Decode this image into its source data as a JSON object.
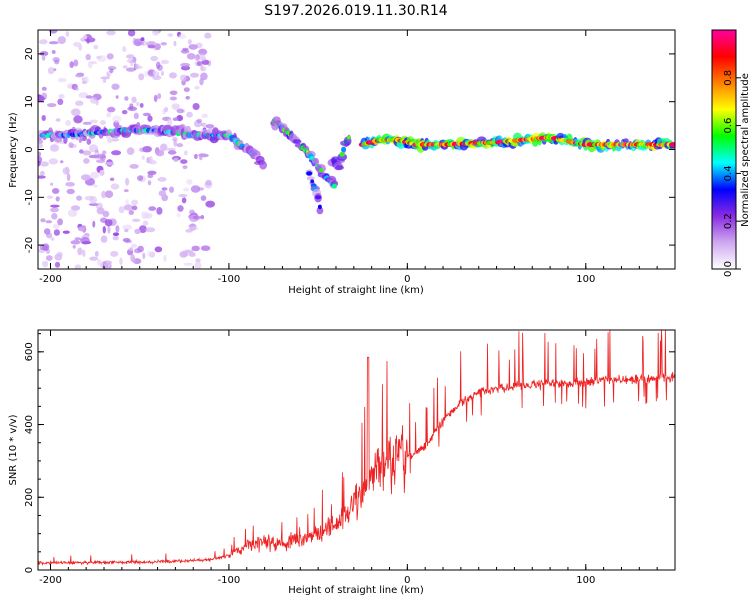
{
  "figure_title": "S197.2026.019.11.30.R14",
  "colorbar": {
    "label": "Normalized spectral amplitude",
    "range": [
      0,
      1
    ],
    "ticks": [
      0.0,
      0.2,
      0.4,
      0.6,
      0.8
    ],
    "tick_labels": [
      "0.0",
      "0.2",
      "0.4",
      "0.6",
      "0.8"
    ],
    "stops": [
      "#ffffff",
      "#cfa8f0",
      "#8a2be2",
      "#0000ff",
      "#00ffff",
      "#00ff00",
      "#ffff00",
      "#ff8000",
      "#ff0000",
      "#ff00a0"
    ]
  },
  "chart_data": [
    {
      "type": "heatmap",
      "name": "spectrogram",
      "title": "S197.2026.019.11.30.R14",
      "xlabel": "Height of straight line (km)",
      "ylabel": "Frequency (Hz)",
      "xlim": [
        -207,
        150
      ],
      "ylim": [
        -25,
        25
      ],
      "xticks": [
        -200,
        -100,
        0,
        100
      ],
      "xtick_labels": [
        "-200",
        "-100",
        "0",
        "100"
      ],
      "yticks": [
        -20,
        -10,
        0,
        10,
        20
      ],
      "ytick_labels": [
        "-20",
        "-10",
        "0",
        "10",
        "20"
      ],
      "features": [
        {
          "name": "noise-field",
          "x_range": [
            -207,
            -110
          ],
          "y_range": [
            -25,
            25
          ],
          "amplitude": 0.15
        },
        {
          "name": "main-trace",
          "points": [
            [
              -205,
              3
            ],
            [
              -190,
              3
            ],
            [
              -160,
              4
            ],
            [
              -140,
              4
            ],
            [
              -120,
              3
            ],
            [
              -100,
              3
            ],
            [
              -90,
              0
            ],
            [
              -80,
              -3
            ]
          ],
          "amplitude": 0.35
        },
        {
          "name": "trace-segment-a",
          "points": [
            [
              -75,
              6
            ],
            [
              -65,
              3
            ],
            [
              -55,
              -1
            ],
            [
              -45,
              -6
            ],
            [
              -40,
              -8
            ]
          ],
          "amplitude": 0.45
        },
        {
          "name": "trace-segment-b",
          "points": [
            [
              -55,
              -5
            ],
            [
              -50,
              -10
            ],
            [
              -48,
              -14
            ]
          ],
          "amplitude": 0.3
        },
        {
          "name": "trace-segment-c",
          "points": [
            [
              -42,
              -3
            ],
            [
              -38,
              -3
            ],
            [
              -35,
              1
            ],
            [
              -32,
              3
            ]
          ],
          "amplitude": 0.4
        },
        {
          "name": "carrier-line",
          "points": [
            [
              -25,
              1
            ],
            [
              -15,
              2
            ],
            [
              -5,
              2
            ],
            [
              5,
              1
            ],
            [
              20,
              1
            ],
            [
              50,
              1.5
            ],
            [
              80,
              2.5
            ],
            [
              100,
              1
            ],
            [
              120,
              1
            ],
            [
              150,
              1
            ]
          ],
          "amplitude": 0.95
        }
      ]
    },
    {
      "type": "line",
      "name": "snr",
      "xlabel": "Height of straight line (km)",
      "ylabel": "SNR (10 * v/v)",
      "xlim": [
        -207,
        150
      ],
      "ylim": [
        0,
        660
      ],
      "xticks": [
        -200,
        -100,
        0,
        100
      ],
      "xtick_labels": [
        "-200",
        "-100",
        "0",
        "100"
      ],
      "yticks": [
        0,
        200,
        400,
        600
      ],
      "ytick_labels": [
        "0",
        "200",
        "400",
        "600"
      ],
      "color": "#ee2222",
      "series": [
        {
          "name": "SNR",
          "x": [
            -207,
            -190,
            -170,
            -150,
            -130,
            -110,
            -100,
            -90,
            -80,
            -70,
            -60,
            -50,
            -40,
            -30,
            -20,
            -10,
            0,
            10,
            20,
            30,
            40,
            50,
            60,
            70,
            80,
            90,
            100,
            110,
            120,
            130,
            140,
            150
          ],
          "y": [
            20,
            20,
            21,
            22,
            24,
            28,
            40,
            65,
            80,
            70,
            90,
            100,
            120,
            180,
            260,
            300,
            310,
            340,
            410,
            460,
            490,
            500,
            505,
            510,
            512,
            515,
            518,
            520,
            522,
            525,
            528,
            530
          ]
        }
      ]
    }
  ]
}
